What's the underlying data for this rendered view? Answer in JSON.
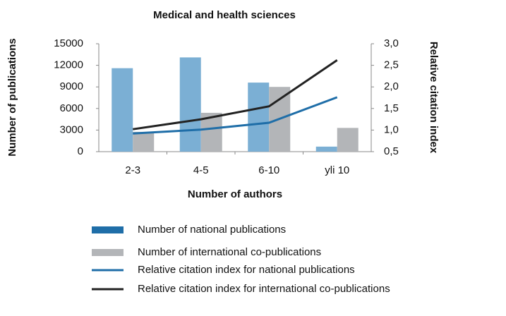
{
  "chart_data": {
    "type": "bar-line",
    "title": "Medical and health sciences",
    "x_label": "Number of authors",
    "y_label": "Number of publications",
    "y2_label": "Relative citation index",
    "categories": [
      "2-3",
      "4-5",
      "6-10",
      "yli 10"
    ],
    "series": [
      {
        "name": "Number of national publications",
        "type": "bar",
        "color": "#7bafd4",
        "legend_color": "#1f6ea8",
        "values": [
          11600,
          13100,
          9600,
          700
        ]
      },
      {
        "name": "Number of international co-publications",
        "type": "bar",
        "color": "#b3b5b8",
        "values": [
          2750,
          5400,
          9000,
          3300
        ]
      },
      {
        "name": "Relative citation index for national publications",
        "type": "line",
        "axis": "y2",
        "color": "#1f6ea8",
        "values": [
          0.92,
          1.01,
          1.17,
          1.76
        ]
      },
      {
        "name": "Relative citation index for international co-publications",
        "type": "line",
        "axis": "y2",
        "color": "#222222",
        "values": [
          1.02,
          1.25,
          1.55,
          2.62
        ]
      }
    ],
    "ylim": [
      0,
      15000
    ],
    "yticks": [
      0,
      3000,
      6000,
      9000,
      12000,
      15000
    ],
    "y2lim": [
      0.5,
      3.0
    ],
    "y2ticks": [
      {
        "value": 0.5,
        "label": "0,5"
      },
      {
        "value": 1.0,
        "label": "1,0"
      },
      {
        "value": 1.5,
        "label": "1,5"
      },
      {
        "value": 2.0,
        "label": "2,0"
      },
      {
        "value": 2.5,
        "label": "2,5"
      },
      {
        "value": 3.0,
        "label": "3,0"
      }
    ],
    "grid": false,
    "legend": "bottom"
  }
}
